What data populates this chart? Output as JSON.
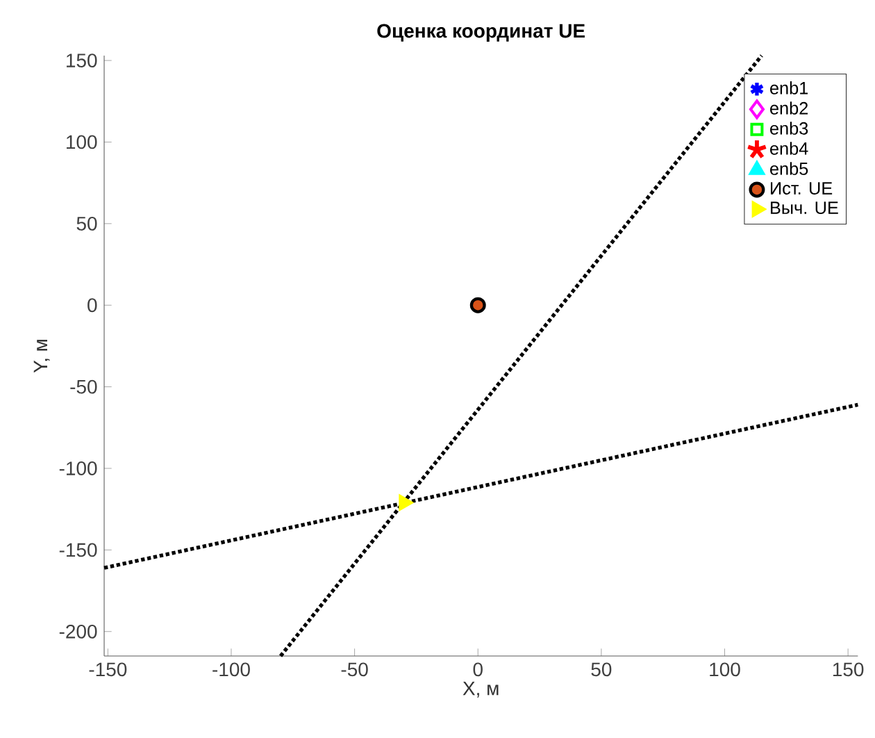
{
  "chart_data": {
    "type": "scatter",
    "title": "Оценка координат UE",
    "xlabel": "X, м",
    "ylabel": "Y, м",
    "xlim": [
      -151.5,
      154
    ],
    "ylim": [
      -215,
      153
    ],
    "xticks": [
      -150,
      -100,
      -50,
      0,
      50,
      100,
      150
    ],
    "yticks": [
      -200,
      -150,
      -100,
      -50,
      0,
      50,
      100,
      150
    ],
    "grid": false,
    "legend": "top right",
    "series": [
      {
        "name": "enb1",
        "marker": "cross",
        "color": "#0000ff"
      },
      {
        "name": "enb2",
        "marker": "diamond",
        "color": "#ff00ff"
      },
      {
        "name": "enb3",
        "marker": "square",
        "color": "#00ff00"
      },
      {
        "name": "enb4",
        "marker": "star",
        "color": "#ff0000"
      },
      {
        "name": "enb5",
        "marker": "triangle",
        "color": "#00ffff"
      },
      {
        "type": "line",
        "line_style": "dotted",
        "marker": "none",
        "color": "#000000",
        "x": [
          -80,
          115
        ],
        "values": [
          -215,
          153
        ]
      },
      {
        "type": "line",
        "line_style": "dotted",
        "marker": "none",
        "color": "#000000",
        "x": [
          -151.5,
          154
        ],
        "values": [
          -161,
          -61
        ]
      },
      {
        "name": "Ист. UE",
        "marker": "circle",
        "color": "#d95319",
        "x": [
          0
        ],
        "values": [
          0
        ]
      },
      {
        "name": "Выч. UE",
        "marker": "triangle",
        "color": "#ffff00",
        "x": [
          -30
        ],
        "values": [
          -121
        ]
      }
    ]
  }
}
